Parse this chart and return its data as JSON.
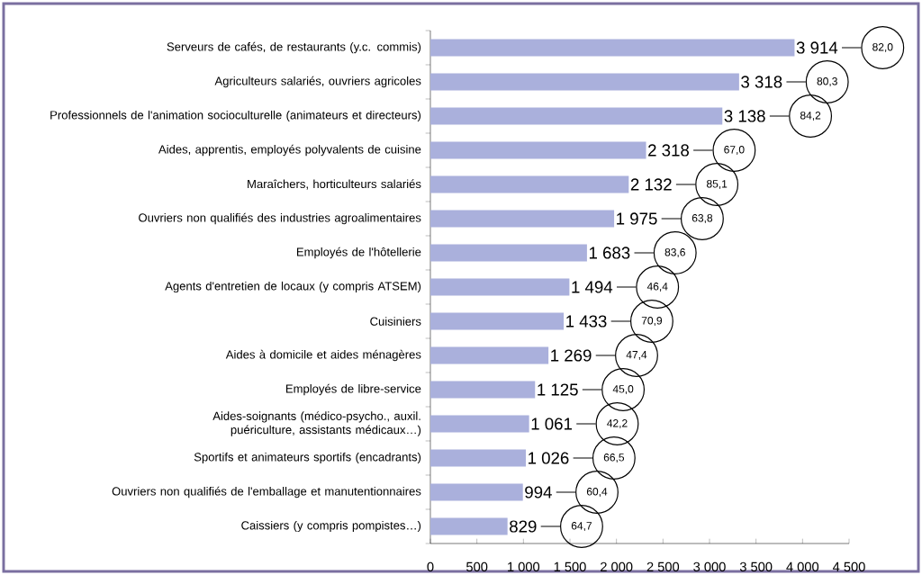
{
  "chart_data": {
    "type": "bar",
    "orientation": "horizontal",
    "color": "#aab0dc",
    "categories": [
      "Serveurs de cafés, de restaurants (y.c. commis)",
      "Agriculteurs salariés, ouvriers agricoles",
      "Professionnels de l'animation socioculturelle (animateurs et directeurs)",
      "Aides, apprentis, employés polyvalents de cuisine",
      "Maraîchers, horticulteurs salariés",
      "Ouvriers non qualifiés des industries agroalimentaires",
      "Employés de l'hôtellerie",
      "Agents d'entretien de locaux (y compris ATSEM)",
      "Cuisiniers",
      "Aides à domicile et aides ménagères",
      "Employés de libre-service",
      "Aides-soignants (médico-psycho., auxil. puériculture, assistants médicaux…)",
      "Sportifs et animateurs sportifs (encadrants)",
      "Ouvriers non qualifiés de l'emballage et manutentionnaires",
      "Caissiers (y compris pompistes…)"
    ],
    "values": [
      3914,
      3318,
      3138,
      2318,
      2132,
      1975,
      1683,
      1494,
      1433,
      1269,
      1125,
      1061,
      1026,
      994,
      829
    ],
    "value_labels": [
      "3 914",
      "3 318",
      "3 138",
      "2 318",
      "2 132",
      "1 975",
      "1 683",
      "1 494",
      "1 433",
      "1 269",
      "1 125",
      "1 061",
      "1 026",
      "994",
      "829"
    ],
    "xlim": [
      0,
      4500
    ],
    "xticks": [
      0,
      500,
      {
        "value": 1000,
        "label": "1 000"
      },
      {
        "value": 1500,
        "label": "1 500"
      },
      {
        "value": 2000,
        "label": "2 000"
      },
      {
        "value": 2500,
        "label": "2 500"
      },
      {
        "value": 3000,
        "label": "3 000"
      },
      {
        "value": 3500,
        "label": "3 500"
      },
      {
        "value": 4000,
        "label": "4 000"
      },
      {
        "value": 4500,
        "label": "4 500"
      }
    ],
    "annotations": [
      "82,0",
      "80,3",
      "84,2",
      "67,0",
      "85,1",
      "63,8",
      "83,6",
      "46,4",
      "70,9",
      "47,4",
      "45,0",
      "42,2",
      "66,5",
      "60,4",
      "64,7"
    ]
  }
}
